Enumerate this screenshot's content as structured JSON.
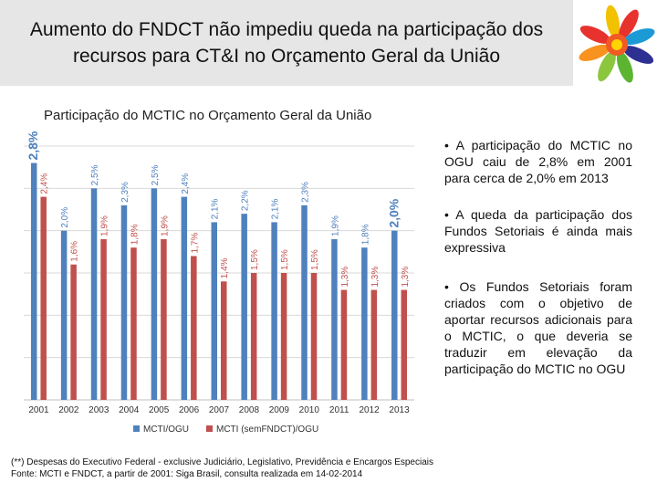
{
  "header": {
    "title_line1": "Aumento do FNDCT não impediu queda na participação dos",
    "title_line2": "recursos para CT&I no Orçamento Geral da União"
  },
  "chart_data": {
    "type": "bar",
    "title": "Participação do MCTIC no Orçamento Geral da União",
    "categories": [
      "2001",
      "2002",
      "2003",
      "2004",
      "2005",
      "2006",
      "2007",
      "2008",
      "2009",
      "2010",
      "2011",
      "2012",
      "2013"
    ],
    "series": [
      {
        "name": "MCTI/OGU",
        "color": "#4f81bd",
        "values": [
          2.8,
          2.0,
          2.5,
          2.3,
          2.5,
          2.4,
          2.1,
          2.2,
          2.1,
          2.3,
          1.9,
          1.8,
          2.0
        ],
        "labels": [
          "2,8%",
          "2,0%",
          "2,5%",
          "2,3%",
          "2,5%",
          "2,4%",
          "2,1%",
          "2,2%",
          "2,1%",
          "2,3%",
          "1,9%",
          "1,8%",
          "2,0%"
        ]
      },
      {
        "name": "MCTI (semFNDCT)/OGU",
        "color": "#c0504d",
        "values": [
          2.4,
          1.6,
          1.9,
          1.8,
          1.9,
          1.7,
          1.4,
          1.5,
          1.5,
          1.5,
          1.3,
          1.3,
          1.3
        ],
        "labels": [
          "2,4%",
          "1,6%",
          "1,9%",
          "1,8%",
          "1,9%",
          "1,7%",
          "1,4%",
          "1,5%",
          "1,5%",
          "1,5%",
          "1,3%",
          "1,3%",
          "1,3%"
        ]
      }
    ],
    "ylim": [
      0,
      3.0
    ],
    "grid": true,
    "legend_position": "bottom"
  },
  "bullets": [
    "• A participação do MCTIC no OGU caiu de 2,8% em 2001 para cerca de 2,0% em 2013",
    "• A queda da participação dos Fundos Setoriais é ainda mais expressiva",
    "• Os Fundos Setoriais foram criados com o objetivo de aportar recursos adicionais para o MCTIC, o que deveria se traduzir em elevação da participação do MCTIC no OGU"
  ],
  "footnote": {
    "line1": "(**) Despesas do Executivo Federal - exclusive Judiciário, Legislativo, Previdência e Encargos Especiais",
    "line2": "Fonte: MCTI e FNDCT, a partir de 2001: Siga Brasil, consulta realizada em 14-02-2014"
  },
  "logo": {
    "icon": "colorful-hands-icon"
  }
}
